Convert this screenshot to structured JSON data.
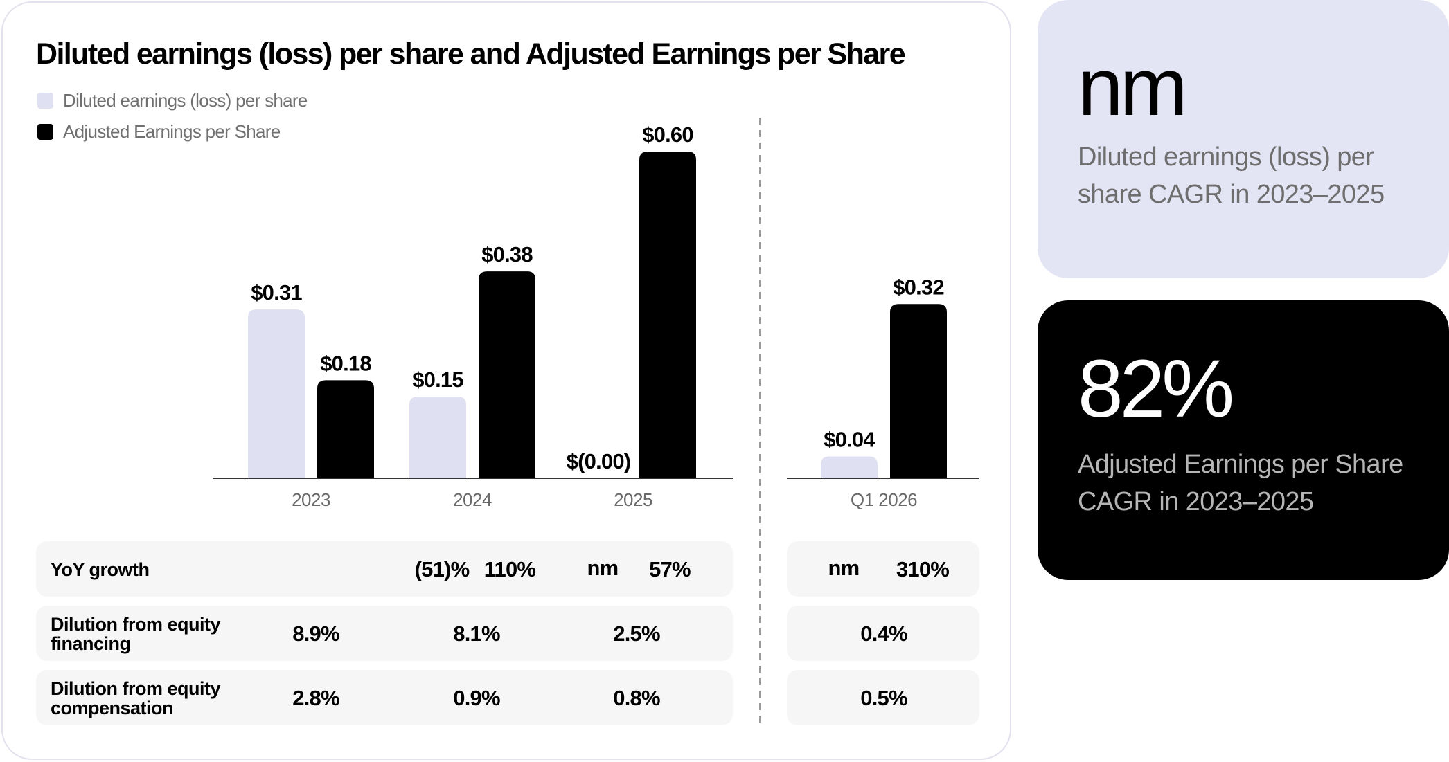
{
  "title": "Diluted earnings (loss) per share and Adjusted Earnings per Share",
  "legend": [
    {
      "label": "Diluted earnings (loss) per share",
      "color": "#dfe0f1"
    },
    {
      "label": "Adjusted Earnings per Share",
      "color": "#000000"
    }
  ],
  "chart_data": {
    "type": "bar",
    "title": "Diluted earnings (loss) per share and Adjusted Earnings per Share",
    "categories": [
      "2023",
      "2024",
      "2025",
      "Q1 2026"
    ],
    "series": [
      {
        "name": "Diluted earnings (loss) per share",
        "color": "#dfe0f1",
        "values": [
          0.31,
          0.15,
          0.0,
          0.04
        ],
        "labels": [
          "$0.31",
          "$0.15",
          "$(0.00)",
          "$0.04"
        ]
      },
      {
        "name": "Adjusted Earnings per Share",
        "color": "#000000",
        "values": [
          0.18,
          0.38,
          0.6,
          0.32
        ],
        "labels": [
          "$0.18",
          "$0.38",
          "$0.60",
          "$0.32"
        ]
      }
    ],
    "ylim": [
      0,
      0.6
    ],
    "grid": false,
    "legend_position": "top-left",
    "separator_before": "Q1 2026"
  },
  "table": {
    "rows": [
      {
        "label": "YoY growth",
        "values": [
          "",
          "",
          "(51)%",
          "110%",
          "nm",
          "57%",
          "nm",
          "310%"
        ]
      },
      {
        "label": "Dilution from equity financing",
        "values": [
          "8.9%",
          "8.1%",
          "2.5%",
          "0.4%"
        ]
      },
      {
        "label": "Dilution from equity compensation",
        "values": [
          "2.8%",
          "0.9%",
          "0.8%",
          "0.5%"
        ]
      }
    ]
  },
  "side_cards": [
    {
      "value": "nm",
      "label": "Diluted earnings (loss) per share CAGR in 2023–2025",
      "bg": "#e4e5f4",
      "value_color": "#000000",
      "label_color": "#6e6e6e"
    },
    {
      "value": "82%",
      "label": "Adjusted Earnings per Share CAGR in 2023–2025",
      "bg": "#000000",
      "value_color": "#ffffff",
      "label_color": "#b5b5b5"
    }
  ]
}
